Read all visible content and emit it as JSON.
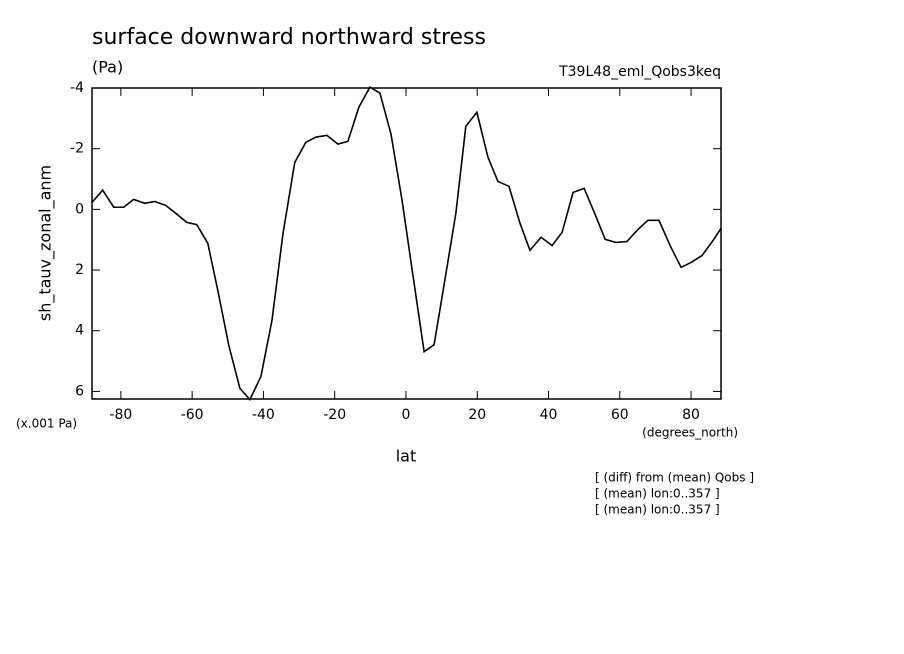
{
  "chart_data": {
    "type": "line",
    "title": "surface downward northward stress",
    "subtitle": "(Pa)",
    "run_label": "T39L48_eml_Qobs3keq",
    "ylabel": "sh_tauv_zonal_anm",
    "y_units": "(x.001 Pa)",
    "x_units": "(degrees_north)",
    "xlabel": "lat",
    "notes": [
      "[ (diff) from (mean) Qobs ]",
      "[ (mean) lon:0..357 ]",
      "[ (mean) lon:0..357 ]"
    ],
    "x": [
      -88.1,
      -85.1,
      -82,
      -79.2,
      -76.4,
      -73.3,
      -70.5,
      -67.4,
      -64.6,
      -61.5,
      -58.7,
      -55.6,
      -52.8,
      -49.7,
      -46.6,
      -43.8,
      -40.7,
      -37.6,
      -34.5,
      -31.2,
      -28.1,
      -25.3,
      -22.2,
      -19.1,
      -16.3,
      -13.2,
      -10.1,
      -7.3,
      -4.2,
      -1.1,
      2,
      5.1,
      7.9,
      10.9,
      14,
      16.8,
      19.9,
      23,
      25.8,
      28.9,
      32,
      34.8,
      37.9,
      41,
      43.8,
      46.9,
      50,
      53.1,
      55.9,
      58.9,
      62,
      65.1,
      67.9,
      71,
      74.1,
      77.2,
      80,
      83.1,
      86.2,
      88.4
    ],
    "series": [
      {
        "name": "sh_tauv_zonal_anm",
        "color": "#000000",
        "values": [
          -0.23,
          -0.63,
          -0.07,
          -0.07,
          -0.33,
          -0.2,
          -0.26,
          -0.13,
          0.13,
          0.43,
          0.5,
          1.12,
          2.67,
          4.49,
          5.9,
          6.27,
          5.51,
          3.66,
          0.79,
          -1.55,
          -2.21,
          -2.38,
          -2.44,
          -2.15,
          -2.24,
          -3.37,
          -4.03,
          -3.83,
          -2.48,
          -0.3,
          2.21,
          4.69,
          4.46,
          2.34,
          0.13,
          -2.74,
          -3.2,
          -1.72,
          -0.92,
          -0.76,
          0.46,
          1.35,
          0.92,
          1.19,
          0.76,
          -0.56,
          -0.69,
          0.17,
          0.99,
          1.09,
          1.06,
          0.66,
          0.36,
          0.36,
          1.19,
          1.91,
          1.75,
          1.52,
          1.02,
          0.63
        ]
      }
    ],
    "xlim": [
      -88.1,
      88.4
    ],
    "xticks": [
      -80,
      -60,
      -40,
      -20,
      0,
      20,
      40,
      60,
      80
    ],
    "ylim": [
      -4,
      6.25
    ],
    "yticks": [
      -4,
      -2,
      0,
      2,
      4,
      6
    ],
    "y_reversed": true,
    "grid": false
  }
}
